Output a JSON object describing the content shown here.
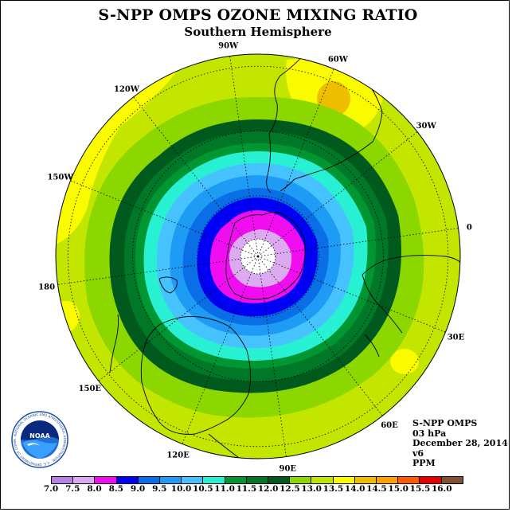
{
  "title": "S-NPP OMPS OZONE MIXING RATIO",
  "subtitle": "Southern Hemisphere",
  "map": {
    "projection": "south polar stereographic",
    "longitude_labels": [
      {
        "text": "0",
        "lon": 0
      },
      {
        "text": "30E",
        "lon": 30
      },
      {
        "text": "60E",
        "lon": 60
      },
      {
        "text": "90E",
        "lon": 90
      },
      {
        "text": "120E",
        "lon": 120
      },
      {
        "text": "150E",
        "lon": 150
      },
      {
        "text": "180",
        "lon": 180
      },
      {
        "text": "150W",
        "lon": -150
      },
      {
        "text": "120W",
        "lon": -120
      },
      {
        "text": "90W",
        "lon": -90
      },
      {
        "text": "60W",
        "lon": -60
      },
      {
        "text": "30W",
        "lon": -30
      }
    ]
  },
  "info": {
    "instrument": "S-NPP OMPS",
    "level": "03 hPa",
    "date": "December 28, 2014",
    "version": "v6",
    "units": "PPM"
  },
  "colorbar": {
    "ticks": [
      "7.0",
      "7.5",
      "8.0",
      "8.5",
      "9.0",
      "9.5",
      "10.0",
      "10.5",
      "11.0",
      "11.5",
      "12.0",
      "12.5",
      "13.0",
      "13.5",
      "14.0",
      "14.5",
      "15.0",
      "15.5",
      "16.0"
    ],
    "colors": [
      "#b97fe6",
      "#dcaaf0",
      "#f00ef0",
      "#0000f5",
      "#0a6ee6",
      "#1e9bf5",
      "#46c3ff",
      "#28f0d2",
      "#009632",
      "#007828",
      "#005a1e",
      "#8cd700",
      "#c3e600",
      "#fafa00",
      "#f0be00",
      "#ffa000",
      "#ff5a00",
      "#e60000",
      "#825032"
    ]
  },
  "logo": {
    "text": "NOAA",
    "ring_text": "NATIONAL OCEANIC AND ATMOSPHERIC ADMINISTRATION · U.S. DEPARTMENT OF COMMERCE"
  }
}
